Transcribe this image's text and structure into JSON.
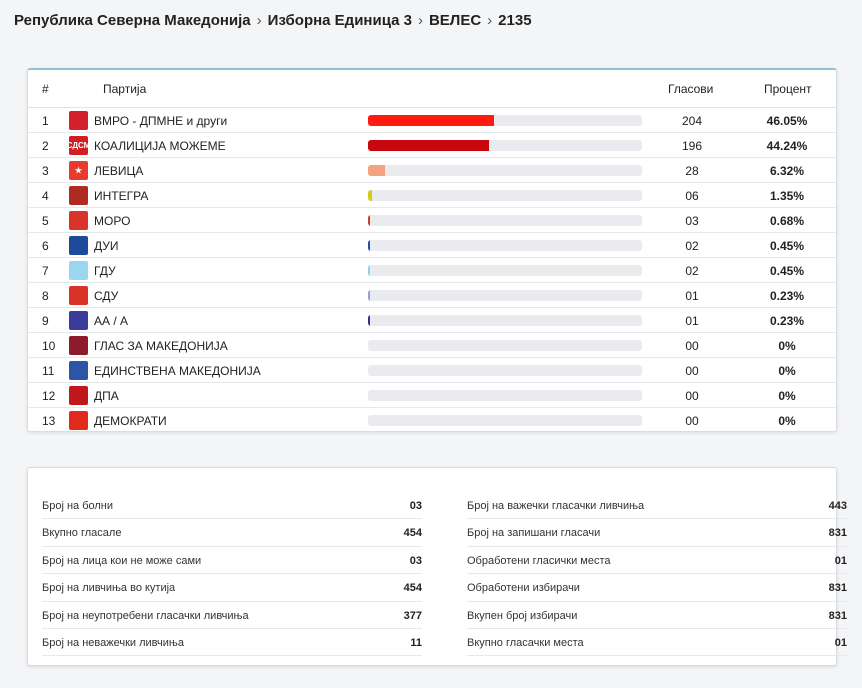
{
  "breadcrumb": [
    "Република Северна Македонија",
    "Изборна Единица 3",
    "ВЕЛЕС",
    "2135"
  ],
  "table": {
    "headers": {
      "num": "#",
      "party": "Партија",
      "votes": "Гласови",
      "percent": "Процент"
    },
    "rows": [
      {
        "num": "1",
        "name": "ВМРО - ДПМНЕ и други",
        "votes": "204",
        "percent": "46.05%",
        "share": 0.4605,
        "bar_color": "#ff1a10",
        "logo_icon": "vmro-dpmne-logo-icon",
        "logo_color": "#d4202a",
        "logo_text": ""
      },
      {
        "num": "2",
        "name": "КОАЛИЦИЈА МОЖЕМЕ",
        "votes": "196",
        "percent": "44.24%",
        "share": 0.4424,
        "bar_color": "#c8080e",
        "logo_icon": "sdsm-logo-icon",
        "logo_color": "#cf1f25",
        "logo_text": "СДСМ"
      },
      {
        "num": "3",
        "name": "ЛЕВИЦА",
        "votes": "28",
        "percent": "6.32%",
        "share": 0.0632,
        "bar_color": "#f5a280",
        "logo_icon": "levica-star-icon",
        "logo_color": "#e63b2e",
        "logo_text": "★"
      },
      {
        "num": "4",
        "name": "ИНТЕГРА",
        "votes": "06",
        "percent": "1.35%",
        "share": 0.0135,
        "bar_color": "#d8c91f",
        "logo_icon": "integra-logo-icon",
        "logo_color": "#b12a22",
        "logo_text": ""
      },
      {
        "num": "5",
        "name": "МОРО",
        "votes": "03",
        "percent": "0.68%",
        "share": 0.0068,
        "bar_color": "#d03a2a",
        "logo_icon": "moro-shield-icon",
        "logo_color": "#d9342b",
        "logo_text": ""
      },
      {
        "num": "6",
        "name": "ДУИ",
        "votes": "02",
        "percent": "0.45%",
        "share": 0.0045,
        "bar_color": "#1f4fa8",
        "logo_icon": "dui-circle-icon",
        "logo_color": "#1d4a9b",
        "logo_text": ""
      },
      {
        "num": "7",
        "name": "ГДУ",
        "votes": "02",
        "percent": "0.45%",
        "share": 0.0045,
        "bar_color": "#8fd0ea",
        "logo_icon": "gdu-circle-icon",
        "logo_color": "#9ad6ee",
        "logo_text": ""
      },
      {
        "num": "8",
        "name": "СДУ",
        "votes": "01",
        "percent": "0.23%",
        "share": 0.0023,
        "bar_color": "#9a9fcc",
        "logo_icon": "sdu-logo-icon",
        "logo_color": "#d93327",
        "logo_text": ""
      },
      {
        "num": "9",
        "name": "АА / А",
        "votes": "01",
        "percent": "0.23%",
        "share": 0.0023,
        "bar_color": "#3a2e8a",
        "logo_icon": "aa-a-logo-icon",
        "logo_color": "#3b3b9a",
        "logo_text": ""
      },
      {
        "num": "10",
        "name": "ГЛАС ЗА МАКЕДОНИЈА",
        "votes": "00",
        "percent": "0%",
        "share": 0,
        "bar_color": "#9b1b30",
        "logo_icon": "glas-logo-icon",
        "logo_color": "#8e1a2d",
        "logo_text": ""
      },
      {
        "num": "11",
        "name": "ЕДИНСТВЕНА МАКЕДОНИЈА",
        "votes": "00",
        "percent": "0%",
        "share": 0,
        "bar_color": "#2a4fa8",
        "logo_icon": "edinstvena-logo-icon",
        "logo_color": "#2c55a8",
        "logo_text": ""
      },
      {
        "num": "12",
        "name": "ДПА",
        "votes": "00",
        "percent": "0%",
        "share": 0,
        "bar_color": "#c31d1d",
        "logo_icon": "dpa-eagle-icon",
        "logo_color": "#c0181c",
        "logo_text": ""
      },
      {
        "num": "13",
        "name": "ДЕМОКРАТИ",
        "votes": "00",
        "percent": "0%",
        "share": 0,
        "bar_color": "#e0231a",
        "logo_icon": "demokrati-logo-icon",
        "logo_color": "#e12a1c",
        "logo_text": ""
      }
    ]
  },
  "stats": {
    "left": [
      {
        "label": "Број на болни",
        "value": "03"
      },
      {
        "label": "Вкупно гласале",
        "value": "454"
      },
      {
        "label": "Број на лица кои не може сами",
        "value": "03"
      },
      {
        "label": "Број на ливчиња во кутија",
        "value": "454"
      },
      {
        "label": "Број на неупотребени гласачки ливчиња",
        "value": "377"
      },
      {
        "label": "Број на неважечки ливчиња",
        "value": "11"
      }
    ],
    "right": [
      {
        "label": "Број на важечки гласачки ливчиња",
        "value": "443"
      },
      {
        "label": "Број на запишани гласачи",
        "value": "831"
      },
      {
        "label": "Обработени гласички места",
        "value": "01"
      },
      {
        "label": "Обработени избирачи",
        "value": "831"
      },
      {
        "label": "Вкупен број избирачи",
        "value": "831"
      },
      {
        "label": "Вкупно гласачки места",
        "value": "01"
      }
    ]
  }
}
